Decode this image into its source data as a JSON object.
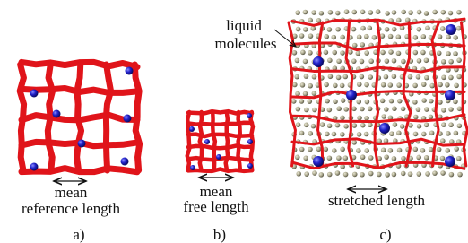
{
  "liquid_label": [
    "liquid",
    "molecules"
  ],
  "panels": [
    {
      "lines": [
        "mean",
        "reference length"
      ],
      "caption": "a)"
    },
    {
      "lines": [
        "mean",
        "free length"
      ],
      "caption": "b)"
    },
    {
      "lines": [
        "stretched length"
      ],
      "caption": "c)"
    }
  ]
}
